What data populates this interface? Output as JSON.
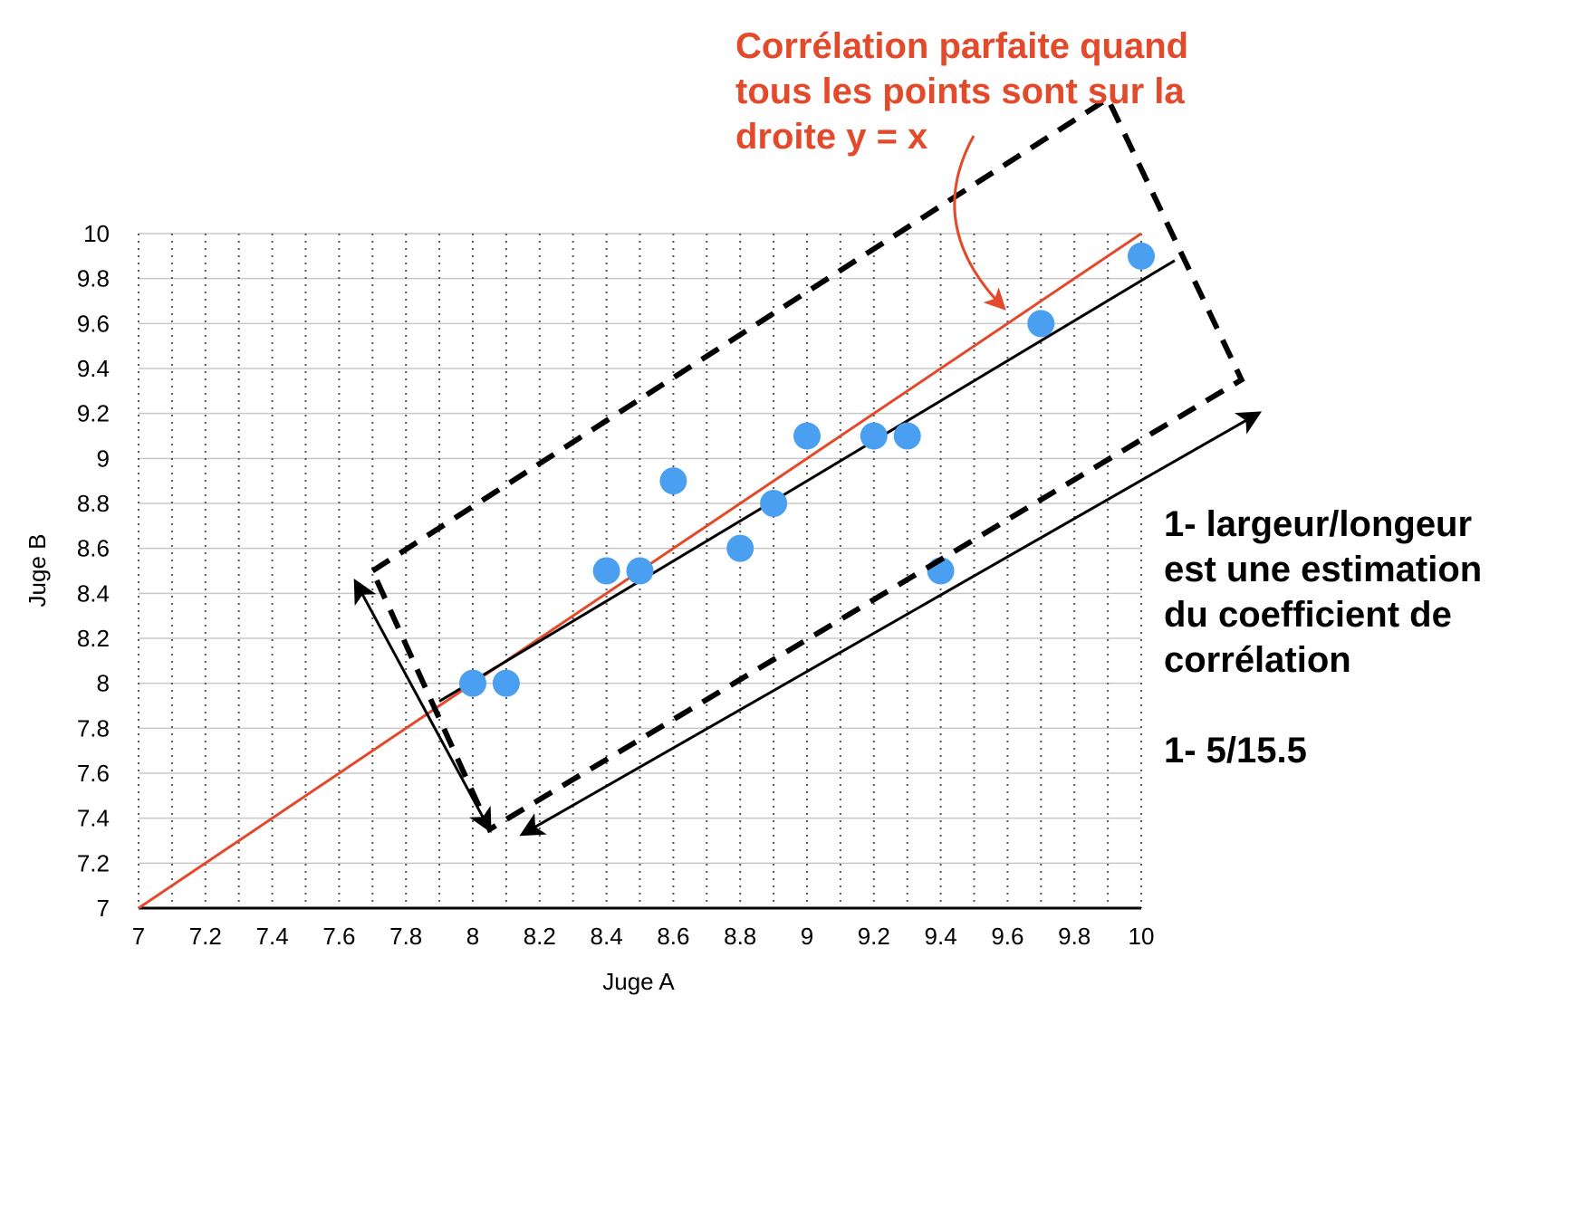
{
  "chart_data": {
    "type": "scatter",
    "xlabel": "Juge A",
    "ylabel": "Juge B",
    "xlim": [
      7,
      10
    ],
    "ylim": [
      7,
      10
    ],
    "x_ticks": [
      "7",
      "7.2",
      "7.4",
      "7.6",
      "7.8",
      "8",
      "8.2",
      "8.4",
      "8.6",
      "8.8",
      "9",
      "9.2",
      "9.4",
      "9.6",
      "9.8",
      "10"
    ],
    "y_ticks": [
      "7",
      "7.2",
      "7.4",
      "7.6",
      "7.8",
      "8",
      "8.2",
      "8.4",
      "8.6",
      "8.8",
      "9",
      "9.2",
      "9.4",
      "9.6",
      "9.8",
      "10"
    ],
    "grid": true,
    "points": [
      {
        "x": 8.0,
        "y": 8.0
      },
      {
        "x": 8.1,
        "y": 8.0
      },
      {
        "x": 8.4,
        "y": 8.5
      },
      {
        "x": 8.5,
        "y": 8.5
      },
      {
        "x": 8.6,
        "y": 8.9
      },
      {
        "x": 8.8,
        "y": 8.6
      },
      {
        "x": 8.9,
        "y": 8.8
      },
      {
        "x": 9.0,
        "y": 9.1
      },
      {
        "x": 9.2,
        "y": 9.1
      },
      {
        "x": 9.3,
        "y": 9.1
      },
      {
        "x": 9.4,
        "y": 8.5
      },
      {
        "x": 9.7,
        "y": 9.6
      },
      {
        "x": 10.0,
        "y": 9.9
      }
    ],
    "reference_line": {
      "from": [
        7,
        7
      ],
      "to": [
        10,
        10
      ],
      "color": "#e24a2b"
    },
    "fit_line": {
      "from": [
        7.9,
        7.92
      ],
      "to": [
        10.1,
        9.88
      ],
      "color": "#000000"
    },
    "ellipse_box": [
      [
        7.7,
        8.5
      ],
      [
        9.9,
        10.6
      ],
      [
        10.3,
        9.35
      ],
      [
        8.05,
        7.35
      ]
    ],
    "width_arrow": {
      "from": [
        7.65,
        8.45
      ],
      "to": [
        8.05,
        7.35
      ]
    },
    "length_arrow": {
      "from": [
        8.15,
        7.33
      ],
      "to": [
        10.35,
        9.2
      ]
    },
    "point_color": "#4a9ff0",
    "annotations": {
      "red_lines": [
        "Corrélation parfaite quand",
        "tous les points sont sur la",
        "droite y = x"
      ],
      "black_lines": [
        "1- largeur/longeur",
        "est une estimation",
        "du coefficient de",
        "corrélation"
      ],
      "formula": "1- 5/15.5"
    }
  }
}
